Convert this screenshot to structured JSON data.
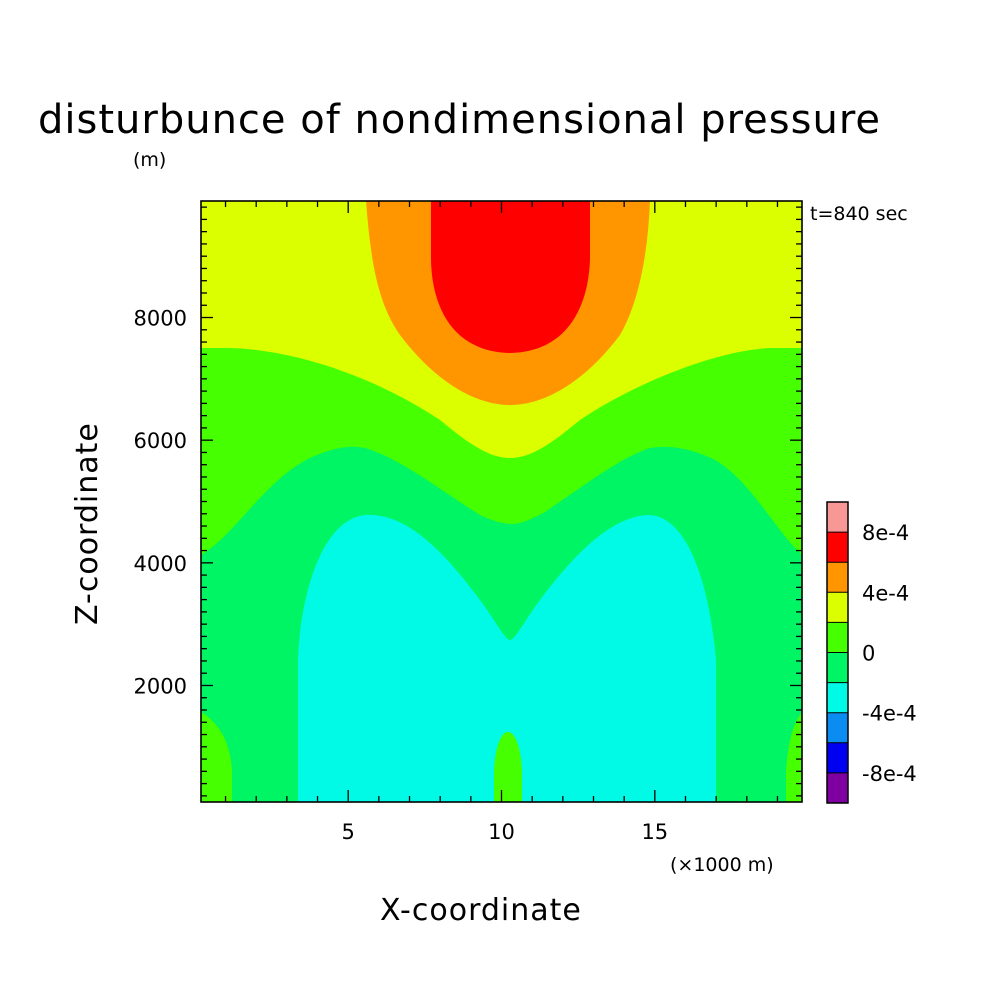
{
  "chart_data": {
    "type": "heatmap",
    "title": "disturbunce of nondimensional pressure",
    "time_label": "t=840 sec",
    "xlabel": "X-coordinate",
    "x_unit": "(×1000 m)",
    "ylabel": "Z-coordinate",
    "y_unit": "(m)",
    "xlim": [
      0.2,
      19.8
    ],
    "ylim": [
      100,
      9900
    ],
    "x_ticks": [
      "5",
      "10",
      "15"
    ],
    "y_ticks": [
      "2000",
      "4000",
      "6000",
      "8000"
    ],
    "x_tick_values": [
      5,
      10,
      15
    ],
    "y_tick_values": [
      2000,
      4000,
      6000,
      8000
    ],
    "colorbar": {
      "levels": [
        "-8e-4",
        "-4e-4",
        "0",
        "4e-4",
        "8e-4"
      ],
      "level_values": [
        -0.0008,
        -0.0004,
        0,
        0.0004,
        0.0008
      ],
      "bins": [
        {
          "range": [
            -0.001,
            -0.0008
          ],
          "color": "#7f00a0"
        },
        {
          "range": [
            -0.0008,
            -0.0006
          ],
          "color": "#0000f0"
        },
        {
          "range": [
            -0.0006,
            -0.0004
          ],
          "color": "#0a8cf0"
        },
        {
          "range": [
            -0.0004,
            -0.0002
          ],
          "color": "#00fae6"
        },
        {
          "range": [
            -0.0002,
            0
          ],
          "color": "#00f564"
        },
        {
          "range": [
            0,
            0.0002
          ],
          "color": "#46ff00"
        },
        {
          "range": [
            0.0002,
            0.0004
          ],
          "color": "#dcff00"
        },
        {
          "range": [
            0.0004,
            0.0006
          ],
          "color": "#ff9600"
        },
        {
          "range": [
            0.0006,
            0.0008
          ],
          "color": "#ff0000"
        },
        {
          "range": [
            0.0008,
            0.001
          ],
          "color": "#f89896"
        }
      ]
    },
    "regions": [
      {
        "level": "0 to 2e-4",
        "color": "#46ff00",
        "description": "green band around mid heights and at corners/center bottom"
      },
      {
        "level": "-2e-4 to 0",
        "color": "#00f564",
        "description": "spring-green band"
      },
      {
        "level": "-4e-4 to -2e-4",
        "color": "#00fae6",
        "description": "cyan double-lobed region in lower half"
      },
      {
        "level": "2e-4 to 4e-4",
        "color": "#dcff00",
        "description": "yellow upper layer"
      },
      {
        "level": "4e-4 to 6e-4",
        "color": "#ff9600",
        "description": "orange arch at top center"
      },
      {
        "level": "6e-4 to 8e-4",
        "color": "#ff0000",
        "description": "red core at top center"
      }
    ]
  }
}
